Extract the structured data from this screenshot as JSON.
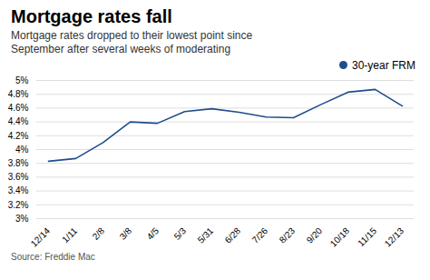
{
  "chart_data": {
    "type": "line",
    "title": "Mortgage rates fall",
    "subtitle": "Mortgage rates dropped to their lowest point since\nSeptember after several weeks of moderating",
    "source": "Source: Freddie Mac",
    "categories": [
      "12/14",
      "1/11",
      "2/8",
      "3/8",
      "4/5",
      "5/3",
      "5/31",
      "6/28",
      "7/26",
      "8/23",
      "9/20",
      "10/18",
      "11/15",
      "12/13"
    ],
    "series": [
      {
        "name": "30-year FRM",
        "color": "#1e4d8c",
        "values": [
          3.83,
          3.87,
          4.1,
          4.4,
          4.38,
          4.55,
          4.59,
          4.54,
          4.47,
          4.46,
          4.65,
          4.83,
          4.87,
          4.63
        ]
      }
    ],
    "ylim": [
      3.0,
      5.0
    ],
    "yticks": [
      {
        "value": 3.0,
        "label": "3%"
      },
      {
        "value": 3.2,
        "label": "3.2%"
      },
      {
        "value": 3.4,
        "label": "3.4%"
      },
      {
        "value": 3.6,
        "label": "3.6%"
      },
      {
        "value": 3.8,
        "label": "3.8%"
      },
      {
        "value": 4.0,
        "label": "4%"
      },
      {
        "value": 4.2,
        "label": "4.2%"
      },
      {
        "value": 4.4,
        "label": "4.4%"
      },
      {
        "value": 4.6,
        "label": "4.6%"
      },
      {
        "value": 4.8,
        "label": "4.8%"
      },
      {
        "value": 5.0,
        "label": "5%"
      }
    ],
    "grid": true,
    "legend": "upper right"
  }
}
